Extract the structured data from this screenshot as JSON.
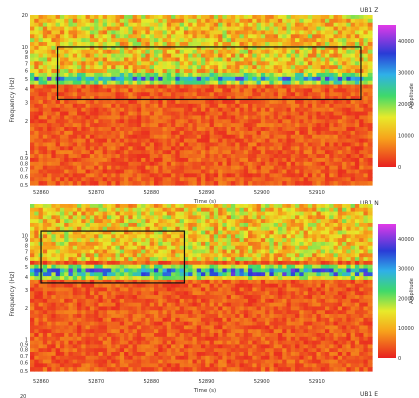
{
  "chart_data": [
    {
      "type": "heatmap",
      "station_label": "UB1 Z",
      "xlabel": "Time (s)",
      "ylabel": "Frequency (Hz)",
      "x_ticks": [
        "52860",
        "52870",
        "52880",
        "52890",
        "52900",
        "52910"
      ],
      "y_ticks": [
        "20",
        "10",
        "9",
        "8",
        "7",
        "6",
        "5",
        "4",
        "3",
        "2",
        "1",
        "0.9",
        "0.8",
        "0.7",
        "0.6",
        "0.5"
      ],
      "colorbar_ticks": [
        "40000",
        "30000",
        "20000",
        "10000",
        "0"
      ],
      "colorbar_label": "Amplitude",
      "xlim": [
        52858,
        52920
      ],
      "ylim": [
        0.5,
        20
      ],
      "y_scale": "log",
      "clim": [
        0,
        45000
      ],
      "band_hz": 5,
      "highlight_box": {
        "t0": 52863,
        "t1": 52918,
        "f0": 3.2,
        "f1": 10
      }
    },
    {
      "type": "heatmap",
      "station_label": "UB1 N",
      "xlabel": "Time (s)",
      "ylabel": "Frequency (Hz)",
      "x_ticks": [
        "52860",
        "52870",
        "52880",
        "52890",
        "52900",
        "52910"
      ],
      "y_ticks": [
        "10",
        "9",
        "8",
        "7",
        "6",
        "5",
        "4",
        "3",
        "2",
        "1",
        "0.9",
        "0.8",
        "0.7",
        "0.6",
        "0.5"
      ],
      "colorbar_ticks": [
        "40000",
        "30000",
        "20000",
        "10000",
        "0"
      ],
      "colorbar_label": "Amplitude",
      "xlim": [
        52858,
        52920
      ],
      "ylim": [
        0.5,
        20
      ],
      "y_scale": "log",
      "clim": [
        0,
        45000
      ],
      "band_hz": 4.5,
      "highlight_box": {
        "t0": 52860,
        "t1": 52886,
        "f0": 3.5,
        "f1": 11
      }
    }
  ],
  "next_panel_label": "UB1 E",
  "next_panel_tick": "20"
}
